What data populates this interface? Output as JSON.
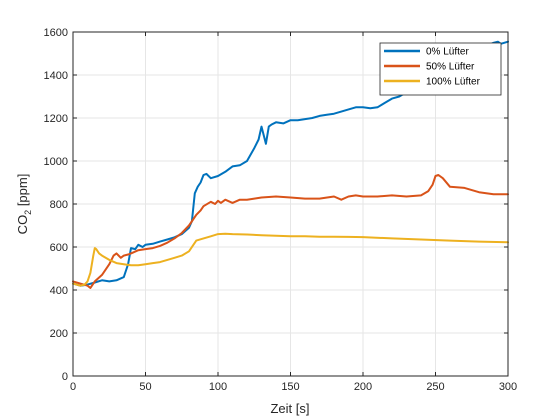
{
  "chart_data": {
    "type": "line",
    "xlabel": "Zeit [s]",
    "ylabel_main": "CO",
    "ylabel_sub": "2",
    "ylabel_unit": " [ppm]",
    "xlim": [
      0,
      300
    ],
    "ylim": [
      0,
      1600
    ],
    "xticks": [
      0,
      50,
      100,
      150,
      200,
      250,
      300
    ],
    "yticks": [
      0,
      200,
      400,
      600,
      800,
      1000,
      1200,
      1400,
      1600
    ],
    "grid": true,
    "legend_position": "top-right",
    "series": [
      {
        "name": "0% Lüfter",
        "color": "#0072BD",
        "x": [
          0,
          5,
          10,
          15,
          20,
          25,
          30,
          35,
          38,
          40,
          43,
          45,
          48,
          50,
          55,
          60,
          65,
          70,
          75,
          80,
          82,
          84,
          86,
          88,
          90,
          92,
          95,
          100,
          105,
          110,
          115,
          120,
          125,
          128,
          130,
          133,
          135,
          137,
          140,
          145,
          150,
          155,
          160,
          165,
          170,
          175,
          180,
          185,
          190,
          195,
          200,
          205,
          210,
          215,
          220,
          225,
          230,
          235,
          240,
          245,
          250,
          255,
          260,
          265,
          270,
          275,
          280,
          285,
          290,
          293,
          295,
          300
        ],
        "y": [
          430,
          420,
          425,
          435,
          445,
          440,
          445,
          460,
          520,
          595,
          590,
          610,
          600,
          610,
          615,
          625,
          635,
          645,
          660,
          690,
          720,
          850,
          880,
          900,
          935,
          940,
          920,
          930,
          950,
          975,
          980,
          1000,
          1060,
          1100,
          1160,
          1080,
          1160,
          1170,
          1180,
          1175,
          1190,
          1190,
          1195,
          1200,
          1210,
          1215,
          1220,
          1230,
          1240,
          1250,
          1250,
          1245,
          1250,
          1270,
          1290,
          1300,
          1320,
          1340,
          1360,
          1380,
          1400,
          1420,
          1440,
          1460,
          1480,
          1500,
          1520,
          1535,
          1550,
          1555,
          1545,
          1555
        ]
      },
      {
        "name": "50% Lüfter",
        "color": "#D95319",
        "x": [
          0,
          5,
          10,
          12,
          15,
          20,
          25,
          28,
          30,
          33,
          35,
          38,
          40,
          45,
          50,
          55,
          60,
          65,
          70,
          75,
          80,
          85,
          88,
          90,
          95,
          98,
          100,
          102,
          105,
          110,
          115,
          120,
          125,
          130,
          140,
          150,
          160,
          170,
          180,
          185,
          190,
          195,
          200,
          210,
          220,
          230,
          240,
          245,
          248,
          250,
          252,
          255,
          260,
          270,
          280,
          290,
          300
        ],
        "y": [
          440,
          430,
          420,
          410,
          440,
          470,
          520,
          560,
          570,
          550,
          560,
          565,
          570,
          585,
          590,
          595,
          605,
          620,
          640,
          665,
          700,
          750,
          770,
          790,
          810,
          800,
          815,
          805,
          820,
          805,
          820,
          820,
          825,
          830,
          835,
          830,
          825,
          825,
          835,
          820,
          835,
          840,
          835,
          835,
          840,
          835,
          840,
          860,
          890,
          930,
          935,
          920,
          880,
          875,
          855,
          845,
          845
        ]
      },
      {
        "name": "100% Lüfter",
        "color": "#EDB120",
        "x": [
          0,
          5,
          8,
          10,
          12,
          14,
          15,
          16,
          18,
          20,
          25,
          30,
          35,
          40,
          45,
          50,
          55,
          60,
          65,
          70,
          75,
          80,
          83,
          85,
          90,
          95,
          100,
          105,
          110,
          120,
          130,
          140,
          150,
          160,
          170,
          180,
          190,
          200,
          220,
          240,
          260,
          280,
          300
        ],
        "y": [
          430,
          420,
          425,
          440,
          480,
          560,
          595,
          590,
          570,
          560,
          540,
          525,
          520,
          515,
          515,
          520,
          525,
          530,
          540,
          550,
          560,
          580,
          610,
          630,
          640,
          650,
          660,
          662,
          660,
          658,
          655,
          652,
          650,
          650,
          648,
          648,
          647,
          646,
          640,
          635,
          630,
          625,
          622
        ]
      }
    ]
  }
}
